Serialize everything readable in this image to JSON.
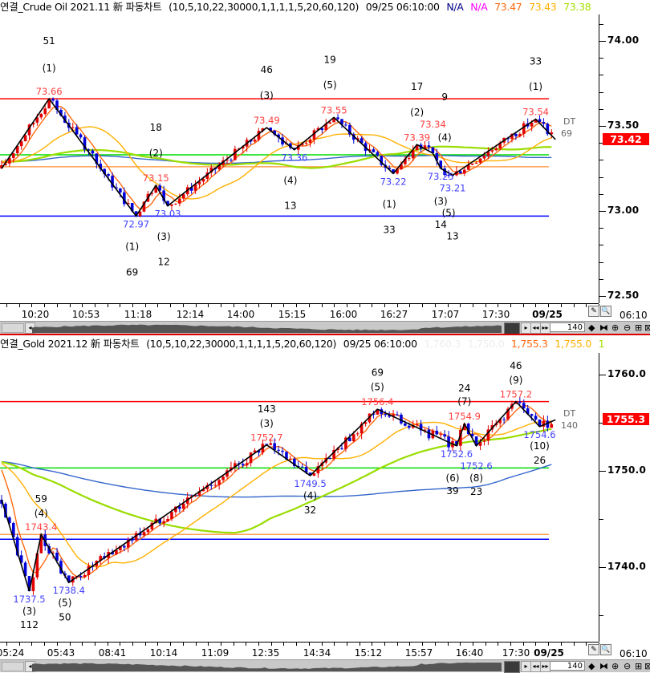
{
  "charts": [
    {
      "header": {
        "title": "연결_Crude Oil 2021.11 新 파동차트",
        "params": "(10,5,10,22,30000,1,1,1,1,5,20,60,120)",
        "datetime": "09/25 06:10:00",
        "values": [
          {
            "text": "N/A",
            "color": "#00008b"
          },
          {
            "text": "N/A",
            "color": "#ff00ff"
          },
          {
            "text": "73.47",
            "color": "#ff6a10"
          },
          {
            "text": "73.43",
            "color": "#ffb000"
          },
          {
            "text": "73.38",
            "color": "#a6e000"
          }
        ]
      },
      "price_axis": {
        "labels": [
          "74.00",
          "73.50",
          "73.00",
          "72.50"
        ],
        "label_values": [
          74.0,
          73.5,
          73.0,
          72.5
        ],
        "current": "73.42",
        "current_value": 73.42
      },
      "time_axis": {
        "labels": [
          "10:20",
          "10:53",
          "11:18",
          "12:14",
          "14:00",
          "15:15",
          "16:00",
          "16:27",
          "17:07",
          "17:30",
          "09/25"
        ],
        "corner": "06:10"
      },
      "scrollbar": {
        "count": "140"
      },
      "chart_data": {
        "type": "candlestick-wave",
        "bars": 140,
        "zigzag": [
          {
            "bar": 0,
            "price": 73.25
          },
          {
            "bar": 12,
            "price": 73.66,
            "label": "73.66",
            "kind": "high"
          },
          {
            "bar": 34,
            "price": 72.97,
            "label": "72.97",
            "kind": "low"
          },
          {
            "bar": 39,
            "price": 73.15,
            "label": "73.15",
            "kind": "high"
          },
          {
            "bar": 42,
            "price": 73.03,
            "label": "73.03",
            "kind": "low"
          },
          {
            "bar": 67,
            "price": 73.49,
            "label": "73.49",
            "kind": "high"
          },
          {
            "bar": 74,
            "price": 73.36,
            "label": "73.36",
            "kind": "low"
          },
          {
            "bar": 84,
            "price": 73.55,
            "label": "73.55",
            "kind": "high"
          },
          {
            "bar": 99,
            "price": 73.22,
            "label": "73.22",
            "kind": "low"
          },
          {
            "bar": 105,
            "price": 73.39,
            "label": "73.39",
            "kind": "high"
          },
          {
            "bar": 109,
            "price": 73.34,
            "label": "73.34",
            "kind": "high"
          },
          {
            "bar": 111,
            "price": 73.25,
            "label": "73.25",
            "kind": "low"
          },
          {
            "bar": 114,
            "price": 73.21,
            "label": "73.21",
            "kind": "low"
          },
          {
            "bar": 135,
            "price": 73.54,
            "label": "73.54",
            "kind": "high"
          },
          {
            "bar": 140,
            "price": 73.42
          }
        ],
        "hlines": [
          {
            "price": 73.66,
            "color": "#ff0000"
          },
          {
            "price": 73.33,
            "color": "#00dd00"
          },
          {
            "price": 73.26,
            "color": "#ffa050"
          },
          {
            "price": 72.97,
            "color": "#0000ff"
          }
        ],
        "wave_labels": [
          {
            "text": "51",
            "bar": 12,
            "price": 74.0
          },
          {
            "text": "(1)",
            "bar": 12,
            "price": 73.84
          },
          {
            "text": "18",
            "bar": 39,
            "price": 73.49
          },
          {
            "text": "(2)",
            "bar": 39,
            "price": 73.34
          },
          {
            "text": "46",
            "bar": 67,
            "price": 73.83
          },
          {
            "text": "(3)",
            "bar": 67,
            "price": 73.68
          },
          {
            "text": "(4)",
            "bar": 73,
            "price": 73.18
          },
          {
            "text": "13",
            "bar": 73,
            "price": 73.03
          },
          {
            "text": "19",
            "bar": 83,
            "price": 73.89
          },
          {
            "text": "(5)",
            "bar": 83,
            "price": 73.74
          },
          {
            "text": "17",
            "bar": 105,
            "price": 73.73
          },
          {
            "text": "(2)",
            "bar": 105,
            "price": 73.58
          },
          {
            "text": "9",
            "bar": 112,
            "price": 73.67
          },
          {
            "text": "(4)",
            "bar": 112,
            "price": 73.53
          },
          {
            "text": "(1)",
            "bar": 98,
            "price": 73.04
          },
          {
            "text": "33",
            "bar": 98,
            "price": 72.89
          },
          {
            "text": "(3)",
            "bar": 111,
            "price": 73.07
          },
          {
            "text": "14",
            "bar": 111,
            "price": 72.92
          },
          {
            "text": "(5)",
            "bar": 113,
            "price": 73.03
          },
          {
            "text": "13",
            "bar": 114,
            "price": 72.88
          },
          {
            "text": "33",
            "bar": 135,
            "price": 73.88
          },
          {
            "text": "(1)",
            "bar": 135,
            "price": 73.73
          },
          {
            "text": "(1)",
            "bar": 33,
            "price": 72.79
          },
          {
            "text": "69",
            "bar": 33,
            "price": 72.64
          },
          {
            "text": "(3)",
            "bar": 41,
            "price": 72.85
          },
          {
            "text": "12",
            "bar": 41,
            "price": 72.7
          }
        ],
        "end_tag": {
          "line1": "DT",
          "line2": "69",
          "price": 73.5
        },
        "ma_periods": [
          5,
          20,
          60,
          120
        ],
        "ma_colors": [
          "#ff6a10",
          "#ffb000",
          "#99dd00",
          "#3366cc"
        ]
      }
    },
    {
      "header": {
        "title": "연결_Gold 2021.12 新 파동차트",
        "params": "(10,5,10,22,30000,1,1,1,1,5,20,60,120)",
        "datetime": "09/25 06:10:00",
        "values": [
          {
            "text": "1,760.3",
            "color": "#eeeeee"
          },
          {
            "text": "1,750.0",
            "color": "#eeeeee"
          },
          {
            "text": "1,755.3",
            "color": "#ff6a10"
          },
          {
            "text": "1,755.0",
            "color": "#ffb000"
          },
          {
            "text": "1",
            "color": "#a6e000"
          }
        ]
      },
      "price_axis": {
        "labels": [
          "1760.0",
          "1750.0",
          "1740.0"
        ],
        "label_values": [
          1760,
          1750,
          1740
        ],
        "current": "1755.3",
        "current_value": 1755.3
      },
      "time_axis": {
        "labels": [
          "05:24",
          "05:43",
          "08:41",
          "10:14",
          "11:09",
          "12:35",
          "14:34",
          "15:12",
          "15:57",
          "16:40",
          "17:30",
          "09/25"
        ],
        "corner": "06:10"
      },
      "scrollbar": {
        "count": "140"
      },
      "chart_data": {
        "type": "candlestick-wave",
        "bars": 140,
        "zigzag": [
          {
            "bar": 0,
            "price": 1747.0
          },
          {
            "bar": 7,
            "price": 1737.5,
            "label": "1737.5",
            "kind": "low"
          },
          {
            "bar": 10,
            "price": 1743.4,
            "label": "1743.4",
            "kind": "high"
          },
          {
            "bar": 17,
            "price": 1738.4,
            "label": "1738.4",
            "kind": "low"
          },
          {
            "bar": 67,
            "price": 1752.7,
            "label": "1752.7",
            "kind": "high"
          },
          {
            "bar": 78,
            "price": 1749.5,
            "label": "1749.5",
            "kind": "low"
          },
          {
            "bar": 95,
            "price": 1756.4,
            "label": "1756.4",
            "kind": "high"
          },
          {
            "bar": 115,
            "price": 1752.6,
            "label": "1752.6",
            "kind": "low"
          },
          {
            "bar": 117,
            "price": 1754.9,
            "label": "1754.9",
            "kind": "high"
          },
          {
            "bar": 120,
            "price": 1752.6,
            "label": "1752.6",
            "kind": "low"
          },
          {
            "bar": 130,
            "price": 1757.2,
            "label": "1757.2",
            "kind": "high"
          },
          {
            "bar": 136,
            "price": 1754.6,
            "label": "1754.6",
            "kind": "low"
          },
          {
            "bar": 140,
            "price": 1755.3
          }
        ],
        "hlines": [
          {
            "price": 1757.2,
            "color": "#ff0000"
          },
          {
            "price": 1750.3,
            "color": "#00dd00"
          },
          {
            "price": 1743.4,
            "color": "#ffa050"
          },
          {
            "price": 1742.9,
            "color": "#0000ff"
          }
        ],
        "wave_labels": [
          {
            "text": "59",
            "bar": 10,
            "price": 1747.1
          },
          {
            "text": "(4)",
            "bar": 10,
            "price": 1745.6
          },
          {
            "text": "(3)",
            "bar": 7,
            "price": 1735.4
          },
          {
            "text": "112",
            "bar": 7,
            "price": 1734.0
          },
          {
            "text": "(5)",
            "bar": 16,
            "price": 1736.3
          },
          {
            "text": "50",
            "bar": 16,
            "price": 1734.8
          },
          {
            "text": "143",
            "bar": 67,
            "price": 1756.4
          },
          {
            "text": "(3)",
            "bar": 67,
            "price": 1754.9
          },
          {
            "text": "(4)",
            "bar": 78,
            "price": 1747.4
          },
          {
            "text": "32",
            "bar": 78,
            "price": 1745.9
          },
          {
            "text": "69",
            "bar": 95,
            "price": 1760.2
          },
          {
            "text": "(5)",
            "bar": 95,
            "price": 1758.7
          },
          {
            "text": "24",
            "bar": 117,
            "price": 1758.6
          },
          {
            "text": "(7)",
            "bar": 117,
            "price": 1757.2
          },
          {
            "text": "(6)",
            "bar": 114,
            "price": 1750.5
          },
          {
            "text": "39",
            "bar": 114,
            "price": 1748.9
          },
          {
            "text": "(8)",
            "bar": 120,
            "price": 1750.5
          },
          {
            "text": "23",
            "bar": 120,
            "price": 1749.1
          },
          {
            "text": "46",
            "bar": 130,
            "price": 1760.9
          },
          {
            "text": "(9)",
            "bar": 130,
            "price": 1759.4
          },
          {
            "text": "(10)",
            "bar": 136,
            "price": 1752.6
          },
          {
            "text": "26",
            "bar": 136,
            "price": 1751.1
          }
        ],
        "end_tag": {
          "line1": "DT",
          "line2": "140",
          "price": 1755.5
        },
        "ma_periods": [
          5,
          20,
          60,
          120
        ],
        "ma_colors": [
          "#ff6a10",
          "#ffb000",
          "#99dd00",
          "#3366cc"
        ]
      }
    }
  ]
}
